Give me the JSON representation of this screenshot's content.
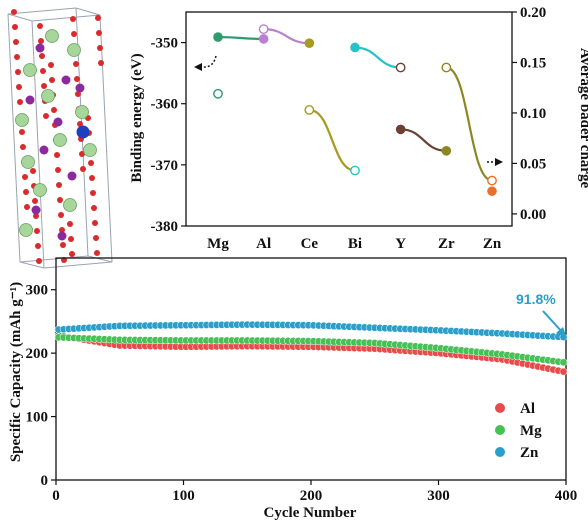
{
  "colors": {
    "mg": "#2f9a6e",
    "al": "#b97fd0",
    "ce": "#a79a1e",
    "bi": "#25c3c9",
    "y": "#6d4036",
    "zr": "#8c8722",
    "zn": "#e8702a",
    "cycle_al": "#e74c4c",
    "cycle_mg": "#45c155",
    "cycle_zn": "#2a9fca",
    "annotation": "#2a9fca"
  },
  "chart_data": [
    {
      "type": "line",
      "categories": [
        "Mg",
        "Al",
        "Ce",
        "Bi",
        "Y",
        "Zr",
        "Zn"
      ],
      "ylabel": "Binding energy (eV)",
      "y2label": "Average bader charge",
      "ylim": [
        -380,
        -345
      ],
      "yticks": [
        -350,
        -360,
        -370,
        -380
      ],
      "y2lim": [
        -0.012,
        0.2
      ],
      "y2ticks": [
        "0.00",
        "0.05",
        "0.10",
        "0.15",
        "0.20"
      ],
      "series": [
        {
          "values_binding": [
            -349.1,
            -349.4,
            -350.1,
            -350.8,
            -364.2,
            -367.7,
            -374.3
          ],
          "values_bader": [
            0.119,
            0.183,
            0.103,
            0.043,
            0.145,
            0.145,
            0.033
          ]
        }
      ]
    },
    {
      "type": "scatter",
      "xlabel": "Cycle Number",
      "ylabel": "Specific Capacity (mAh g⁻¹)",
      "xlim": [
        0,
        400
      ],
      "ylim": [
        0,
        350
      ],
      "xticks": [
        0,
        100,
        200,
        300,
        400
      ],
      "yticks": [
        0,
        100,
        200,
        300
      ],
      "legend_position": "bottom-right",
      "annotation": "91.8%",
      "series": [
        {
          "name": "Al",
          "x": [
            1,
            50,
            100,
            150,
            200,
            250,
            300,
            350,
            400
          ],
          "y": [
            228,
            212,
            210,
            211,
            210,
            207,
            200,
            190,
            170
          ]
        },
        {
          "name": "Mg",
          "x": [
            1,
            50,
            100,
            150,
            200,
            250,
            300,
            350,
            400
          ],
          "y": [
            225,
            221,
            220,
            220,
            219,
            216,
            208,
            198,
            185
          ]
        },
        {
          "name": "Zn",
          "x": [
            1,
            50,
            100,
            150,
            200,
            250,
            300,
            350,
            400
          ],
          "y": [
            237,
            243,
            244,
            245,
            244,
            240,
            236,
            231,
            225
          ]
        }
      ]
    }
  ]
}
